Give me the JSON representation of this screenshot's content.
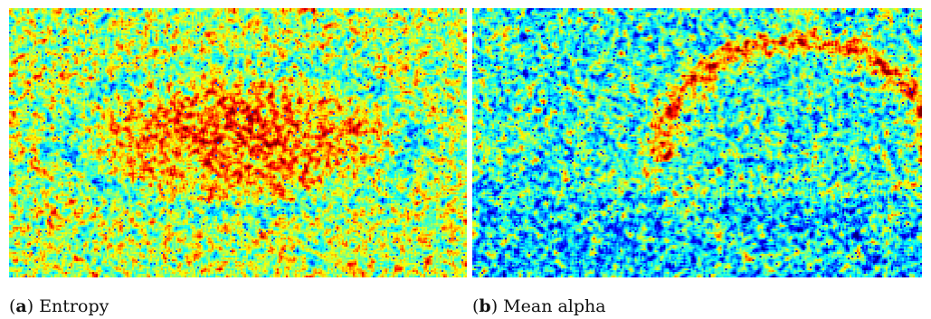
{
  "figure": {
    "panels": [
      {
        "letter": "a",
        "title": "Entropy",
        "colormap": "jet",
        "bias": "high"
      },
      {
        "letter": "b",
        "title": "Mean alpha",
        "colormap": "jet",
        "bias": "low"
      }
    ]
  }
}
